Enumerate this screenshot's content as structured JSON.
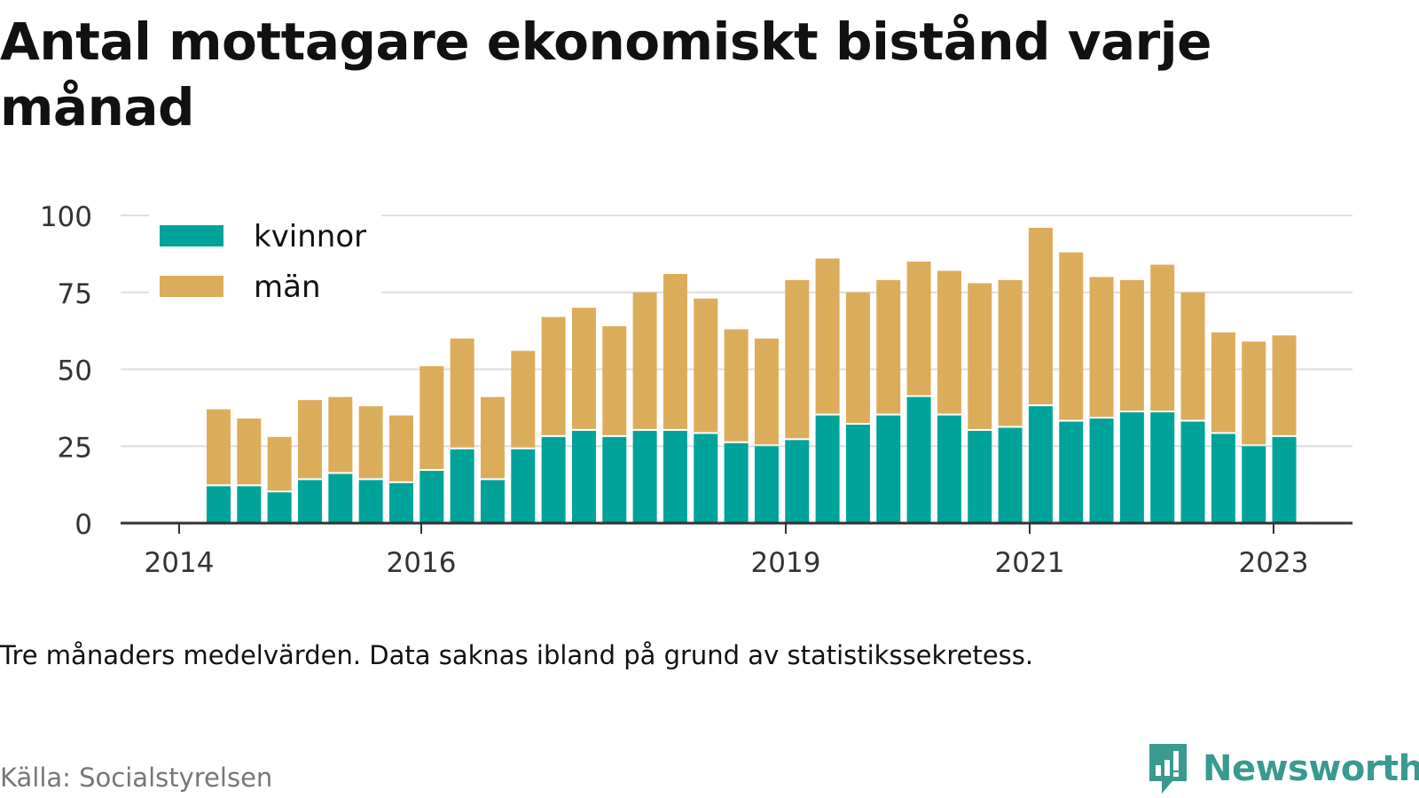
{
  "title": "Antal mottagare ekonomiskt bistånd varje månad",
  "note": "Tre månaders medelvärden. Data saknas ibland på grund av statistikssekretess.",
  "source": "Källa: Socialstyrelsen",
  "brand": "Newsworthy",
  "colors": {
    "kvinnor": "#00a39a",
    "man": "#dbad5b",
    "grid": "#dddddd",
    "axis": "#333333",
    "brand": "#3a9a90"
  },
  "chart_data": {
    "type": "bar",
    "stacked": true,
    "title": "Antal mottagare ekonomiskt bistånd varje månad",
    "ylim": [
      0,
      100
    ],
    "yticks": [
      "0",
      "25",
      "50",
      "75",
      "100"
    ],
    "xticks": [
      "2014",
      "2016",
      "2019",
      "2021",
      "2023"
    ],
    "grid": true,
    "legend_position": "top-left",
    "series": [
      {
        "name": "kvinnor",
        "values": [
          12,
          12,
          10,
          14,
          16,
          14,
          13,
          17,
          24,
          14,
          24,
          28,
          30,
          28,
          30,
          30,
          29,
          26,
          25,
          27,
          35,
          32,
          35,
          41,
          35,
          30,
          31,
          38,
          33,
          34,
          36,
          36,
          33,
          29,
          25,
          28
        ]
      },
      {
        "name": "män",
        "values": [
          25,
          22,
          18,
          26,
          25,
          24,
          22,
          34,
          36,
          27,
          32,
          39,
          40,
          36,
          45,
          51,
          44,
          37,
          35,
          52,
          51,
          43,
          44,
          44,
          47,
          48,
          48,
          58,
          55,
          46,
          43,
          48,
          42,
          33,
          34,
          33
        ]
      }
    ]
  }
}
